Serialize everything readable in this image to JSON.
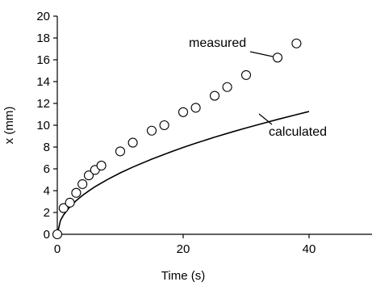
{
  "chart_data": {
    "type": "scatter",
    "xlabel": "Time (s)",
    "ylabel": "x (mm)",
    "xlim": [
      0,
      50
    ],
    "ylim": [
      0,
      20
    ],
    "xticks": [
      0,
      20,
      40
    ],
    "yticks": [
      0,
      2,
      4,
      6,
      8,
      10,
      12,
      14,
      16,
      18,
      20
    ],
    "grid": false,
    "series": [
      {
        "name": "measured",
        "style": "open-circle",
        "points": [
          [
            0,
            0
          ],
          [
            1,
            2.4
          ],
          [
            2,
            2.9
          ],
          [
            3,
            3.8
          ],
          [
            4,
            4.6
          ],
          [
            5,
            5.4
          ],
          [
            6,
            5.9
          ],
          [
            7,
            6.3
          ],
          [
            10,
            7.6
          ],
          [
            12,
            8.4
          ],
          [
            15,
            9.5
          ],
          [
            17,
            10.0
          ],
          [
            20,
            11.2
          ],
          [
            22,
            11.6
          ],
          [
            25,
            12.7
          ],
          [
            27,
            13.5
          ],
          [
            30,
            14.6
          ],
          [
            35,
            16.2
          ],
          [
            38,
            17.5
          ]
        ]
      },
      {
        "name": "calculated",
        "style": "line",
        "points": [
          [
            0,
            0
          ],
          [
            0.5,
            1.26
          ],
          [
            1,
            1.78
          ],
          [
            2,
            2.52
          ],
          [
            3,
            3.08
          ],
          [
            4,
            3.56
          ],
          [
            5,
            3.98
          ],
          [
            6,
            4.36
          ],
          [
            8,
            5.03
          ],
          [
            10,
            5.63
          ],
          [
            12,
            6.16
          ],
          [
            15,
            6.89
          ],
          [
            18,
            7.55
          ],
          [
            20,
            7.96
          ],
          [
            22,
            8.35
          ],
          [
            25,
            8.9
          ],
          [
            28,
            9.42
          ],
          [
            30,
            9.75
          ],
          [
            32,
            10.07
          ],
          [
            35,
            10.53
          ],
          [
            38,
            10.97
          ],
          [
            40,
            11.26
          ]
        ]
      }
    ],
    "annotations": [
      {
        "text": "measured",
        "target_series": "measured"
      },
      {
        "text": "calculated",
        "target_series": "calculated"
      }
    ]
  }
}
